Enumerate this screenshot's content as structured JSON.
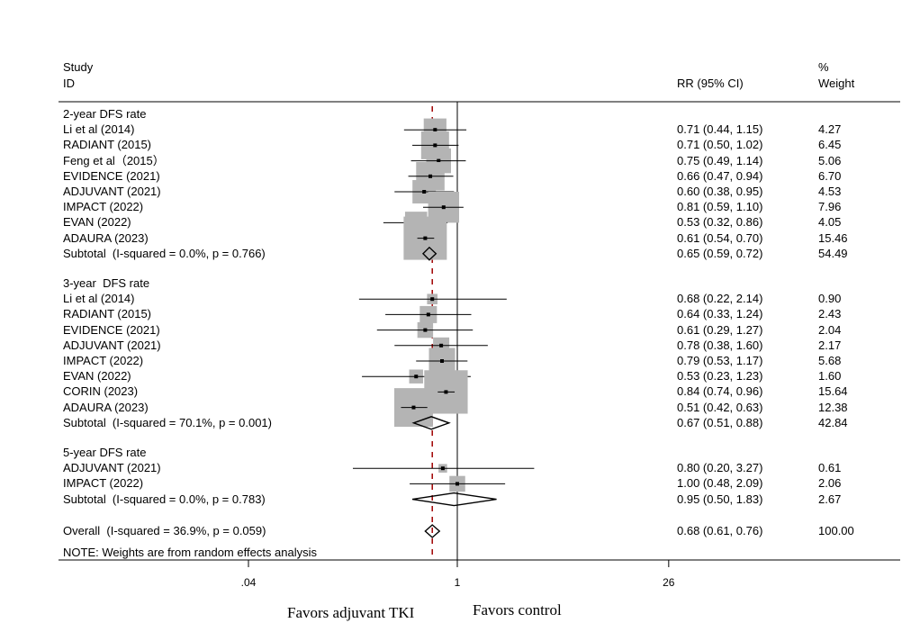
{
  "header": {
    "study_label": "Study",
    "id_label": "ID",
    "rr_label": "RR (95% CI)",
    "weight_pct": "%",
    "weight_label": "Weight"
  },
  "note": "NOTE: Weights are from random effects analysis",
  "favors": {
    "left": "Favors adjuvant TKI",
    "right": "Favors control"
  },
  "colors": {
    "box": "#b4b4b4",
    "null_line": "#000000",
    "overall_line": "#a00000"
  },
  "chart_data": {
    "type": "forest",
    "x_scale": "log",
    "x_ticks": [
      {
        "value": 0.04,
        "label": ".04"
      },
      {
        "value": 1,
        "label": "1"
      },
      {
        "value": 26,
        "label": "26"
      }
    ],
    "xlim": [
      0.0085,
      200
    ],
    "null_value": 1,
    "overall_value": 0.68,
    "groups": [
      {
        "title": "2-year DFS rate",
        "studies": [
          {
            "label": "Li et al (2014)",
            "rr": 0.71,
            "lo": 0.44,
            "hi": 1.15,
            "ci_text": "0.71 (0.44, 1.15)",
            "weight": 4.27,
            "weight_text": "4.27"
          },
          {
            "label": "RADIANT (2015)",
            "rr": 0.71,
            "lo": 0.5,
            "hi": 1.02,
            "ci_text": "0.71 (0.50, 1.02)",
            "weight": 6.45,
            "weight_text": "6.45"
          },
          {
            "label": "Feng et al（2015）",
            "rr": 0.75,
            "lo": 0.49,
            "hi": 1.14,
            "ci_text": "0.75 (0.49, 1.14)",
            "weight": 5.06,
            "weight_text": "5.06"
          },
          {
            "label": "EVIDENCE (2021)",
            "rr": 0.66,
            "lo": 0.47,
            "hi": 0.94,
            "ci_text": "0.66 (0.47, 0.94)",
            "weight": 6.7,
            "weight_text": "6.70"
          },
          {
            "label": "ADJUVANT (2021)",
            "rr": 0.6,
            "lo": 0.38,
            "hi": 0.95,
            "ci_text": "0.60 (0.38, 0.95)",
            "weight": 4.53,
            "weight_text": "4.53"
          },
          {
            "label": "IMPACT (2022)",
            "rr": 0.81,
            "lo": 0.59,
            "hi": 1.1,
            "ci_text": "0.81 (0.59, 1.10)",
            "weight": 7.96,
            "weight_text": "7.96"
          },
          {
            "label": "EVAN (2022)",
            "rr": 0.53,
            "lo": 0.32,
            "hi": 0.86,
            "ci_text": "0.53 (0.32, 0.86)",
            "weight": 4.05,
            "weight_text": "4.05"
          },
          {
            "label": "ADAURA (2023)",
            "rr": 0.61,
            "lo": 0.54,
            "hi": 0.7,
            "ci_text": "0.61 (0.54, 0.70)",
            "weight": 15.46,
            "weight_text": "15.46"
          }
        ],
        "subtotal": {
          "label": "Subtotal  (I-squared = 0.0%, p = 0.766)",
          "rr": 0.65,
          "lo": 0.59,
          "hi": 0.72,
          "ci_text": "0.65 (0.59, 0.72)",
          "weight_text": "54.49"
        }
      },
      {
        "title": "3-year  DFS rate",
        "studies": [
          {
            "label": "Li et al (2014)",
            "rr": 0.68,
            "lo": 0.22,
            "hi": 2.14,
            "ci_text": "0.68 (0.22, 2.14)",
            "weight": 0.9,
            "weight_text": "0.90"
          },
          {
            "label": "RADIANT (2015)",
            "rr": 0.64,
            "lo": 0.33,
            "hi": 1.24,
            "ci_text": "0.64 (0.33, 1.24)",
            "weight": 2.43,
            "weight_text": "2.43"
          },
          {
            "label": "EVIDENCE (2021)",
            "rr": 0.61,
            "lo": 0.29,
            "hi": 1.27,
            "ci_text": "0.61 (0.29, 1.27)",
            "weight": 2.04,
            "weight_text": "2.04"
          },
          {
            "label": "ADJUVANT (2021)",
            "rr": 0.78,
            "lo": 0.38,
            "hi": 1.6,
            "ci_text": "0.78 (0.38, 1.60)",
            "weight": 2.17,
            "weight_text": "2.17"
          },
          {
            "label": "IMPACT (2022)",
            "rr": 0.79,
            "lo": 0.53,
            "hi": 1.17,
            "ci_text": "0.79 (0.53, 1.17)",
            "weight": 5.68,
            "weight_text": "5.68"
          },
          {
            "label": "EVAN (2022)",
            "rr": 0.53,
            "lo": 0.23,
            "hi": 1.23,
            "ci_text": "0.53 (0.23, 1.23)",
            "weight": 1.6,
            "weight_text": "1.60"
          },
          {
            "label": "CORIN (2023)",
            "rr": 0.84,
            "lo": 0.74,
            "hi": 0.96,
            "ci_text": "0.84 (0.74, 0.96)",
            "weight": 15.64,
            "weight_text": "15.64"
          },
          {
            "label": "ADAURA (2023)",
            "rr": 0.51,
            "lo": 0.42,
            "hi": 0.63,
            "ci_text": "0.51 (0.42, 0.63)",
            "weight": 12.38,
            "weight_text": "12.38"
          }
        ],
        "subtotal": {
          "label": "Subtotal  (I-squared = 70.1%, p = 0.001)",
          "rr": 0.67,
          "lo": 0.51,
          "hi": 0.88,
          "ci_text": "0.67 (0.51, 0.88)",
          "weight_text": "42.84"
        }
      },
      {
        "title": "5-year DFS rate",
        "studies": [
          {
            "label": "ADJUVANT (2021)",
            "rr": 0.8,
            "lo": 0.2,
            "hi": 3.27,
            "ci_text": "0.80 (0.20, 3.27)",
            "weight": 0.61,
            "weight_text": "0.61"
          },
          {
            "label": "IMPACT (2022)",
            "rr": 1.0,
            "lo": 0.48,
            "hi": 2.09,
            "ci_text": "1.00 (0.48, 2.09)",
            "weight": 2.06,
            "weight_text": "2.06"
          }
        ],
        "subtotal": {
          "label": "Subtotal  (I-squared = 0.0%, p = 0.783)",
          "rr": 0.95,
          "lo": 0.5,
          "hi": 1.83,
          "ci_text": "0.95 (0.50, 1.83)",
          "weight_text": "2.67"
        }
      }
    ],
    "overall": {
      "label": "Overall  (I-squared = 36.9%, p = 0.059)",
      "rr": 0.68,
      "lo": 0.61,
      "hi": 0.76,
      "ci_text": "0.68 (0.61, 0.76)",
      "weight_text": "100.00"
    }
  }
}
